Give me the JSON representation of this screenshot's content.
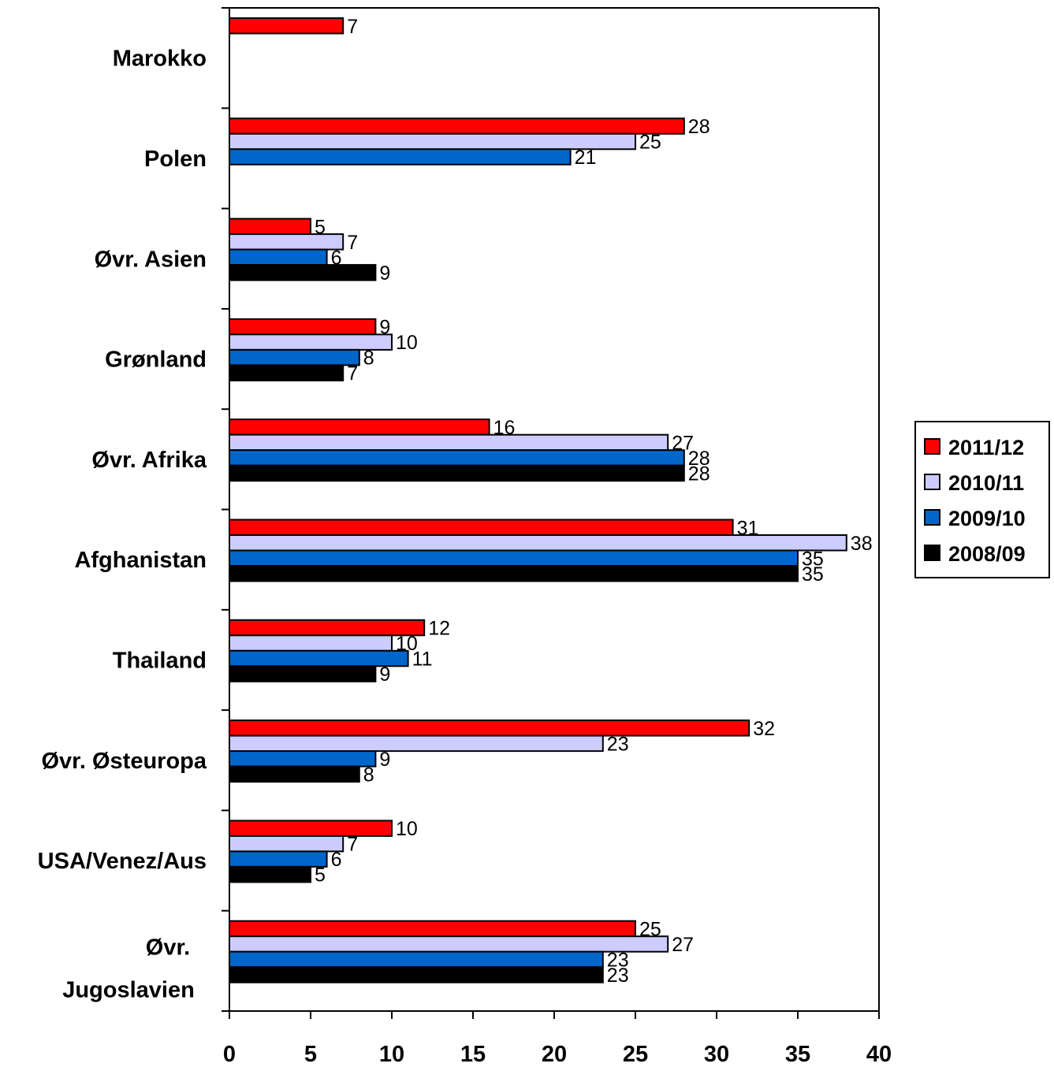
{
  "chart_data": {
    "type": "bar",
    "orientation": "horizontal",
    "categories": [
      "Marokko",
      "Polen",
      "Øvr. Asien",
      "Grønland",
      "Øvr. Afrika",
      "Afghanistan",
      "Thailand",
      "Øvr. Østeuropa",
      "USA/Venez/Aus",
      "Øvr. Jugoslavien"
    ],
    "series": [
      {
        "name": "2011/12",
        "color": "#ff0000",
        "values": [
          7,
          28,
          5,
          9,
          16,
          31,
          12,
          32,
          10,
          25
        ]
      },
      {
        "name": "2010/11",
        "color": "#ccccff",
        "values": [
          null,
          25,
          7,
          10,
          27,
          38,
          10,
          23,
          7,
          27
        ]
      },
      {
        "name": "2009/10",
        "color": "#0066cc",
        "values": [
          null,
          21,
          6,
          8,
          28,
          35,
          11,
          9,
          6,
          23
        ]
      },
      {
        "name": "2008/09",
        "color": "#000000",
        "values": [
          null,
          null,
          9,
          7,
          28,
          35,
          9,
          8,
          5,
          23
        ]
      }
    ],
    "xlim": [
      0,
      40
    ],
    "x_ticks": [
      "0",
      "5",
      "10",
      "15",
      "20",
      "25",
      "30",
      "35",
      "40"
    ],
    "title": "",
    "xlabel": "",
    "ylabel": "",
    "legend_position": "right",
    "grid": false
  }
}
